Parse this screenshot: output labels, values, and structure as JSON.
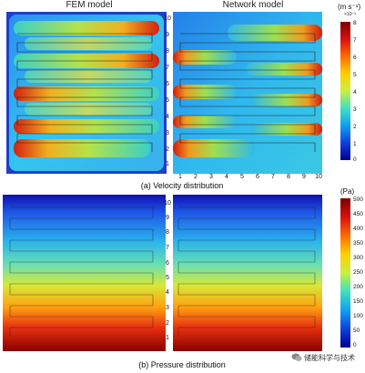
{
  "figure": {
    "panel_titles": [
      "FEM model",
      "Network model"
    ],
    "row_labels": [
      "1",
      "2",
      "3",
      "4",
      "5",
      "6",
      "7",
      "8",
      "9",
      "10"
    ],
    "col_labels": [
      "1",
      "2",
      "3",
      "4",
      "5",
      "6",
      "7",
      "8",
      "9",
      "10"
    ],
    "caption_a": "(a) Velocity distribution",
    "caption_b": "(b) Pressure distribution",
    "velocity_colorbar": {
      "unit": "(m s⁻¹)",
      "exponent": "×10⁻³",
      "ticks": [
        "8",
        "7",
        "6",
        "5",
        "4",
        "3",
        "2",
        "1",
        "0"
      ],
      "range": [
        0,
        8
      ]
    },
    "pressure_colorbar": {
      "unit": "(Pa)",
      "ticks": [
        "500",
        "450",
        "400",
        "350",
        "300",
        "250",
        "200",
        "150",
        "100",
        "50",
        "0"
      ],
      "range": [
        0,
        500
      ]
    },
    "watermark": "储能科学与技术"
  }
}
